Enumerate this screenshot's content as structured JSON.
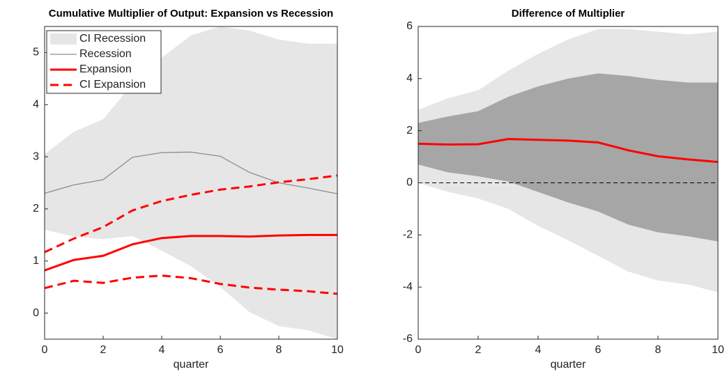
{
  "chart_data": [
    {
      "type": "line",
      "title": "Cumulative Multiplier of Output: Expansion vs Recession",
      "xlabel": "quarter",
      "x": [
        0,
        1,
        2,
        3,
        4,
        5,
        6,
        7,
        8,
        9,
        10
      ],
      "xlim": [
        0,
        10
      ],
      "xticks": [
        0,
        2,
        4,
        6,
        8,
        10
      ],
      "ylim": [
        -0.5,
        5.5
      ],
      "yticks": [
        0,
        1,
        2,
        3,
        4,
        5
      ],
      "legend": "upper left",
      "series": [
        {
          "name": "CI Recession",
          "kind": "band",
          "color": "#e6e6e6",
          "upper": [
            3.05,
            3.48,
            3.72,
            4.4,
            4.9,
            5.33,
            5.5,
            5.42,
            5.25,
            5.17,
            5.17
          ],
          "lower": [
            1.6,
            1.47,
            1.42,
            1.48,
            1.2,
            0.9,
            0.5,
            0.02,
            -0.25,
            -0.33,
            -0.5
          ]
        },
        {
          "name": "Recession",
          "kind": "line",
          "color": "#8c8c8c",
          "values": [
            2.3,
            2.46,
            2.56,
            2.99,
            3.08,
            3.09,
            3.01,
            2.7,
            2.5,
            2.4,
            2.29
          ]
        },
        {
          "name": "Expansion",
          "kind": "line",
          "color": "#ff0000",
          "values": [
            0.82,
            1.02,
            1.1,
            1.32,
            1.44,
            1.48,
            1.48,
            1.47,
            1.49,
            1.5,
            1.5
          ]
        },
        {
          "name": "CI Expansion",
          "kind": "band-lines",
          "color": "#ff0000",
          "dashed": true,
          "upper": [
            1.17,
            1.43,
            1.65,
            1.97,
            2.15,
            2.27,
            2.37,
            2.43,
            2.51,
            2.57,
            2.64
          ],
          "lower": [
            0.48,
            0.62,
            0.58,
            0.68,
            0.72,
            0.67,
            0.56,
            0.49,
            0.45,
            0.42,
            0.37
          ]
        }
      ]
    },
    {
      "type": "line",
      "title": "Difference of Multiplier",
      "xlabel": "quarter",
      "x": [
        0,
        1,
        2,
        3,
        4,
        5,
        6,
        7,
        8,
        9,
        10
      ],
      "xlim": [
        0,
        10
      ],
      "xticks": [
        0,
        2,
        4,
        6,
        8,
        10
      ],
      "ylim": [
        -6,
        6
      ],
      "yticks": [
        -6,
        -4,
        -2,
        0,
        2,
        4,
        6
      ],
      "hline": 0,
      "series": [
        {
          "kind": "band",
          "color": "#e6e6e6",
          "upper": [
            2.8,
            3.25,
            3.55,
            4.3,
            4.95,
            5.5,
            5.9,
            5.9,
            5.8,
            5.7,
            5.8
          ],
          "lower": [
            0.0,
            -0.35,
            -0.6,
            -1.0,
            -1.65,
            -2.2,
            -2.8,
            -3.4,
            -3.75,
            -3.9,
            -4.2
          ]
        },
        {
          "kind": "band",
          "color": "#a6a6a6",
          "upper": [
            2.3,
            2.55,
            2.75,
            3.3,
            3.7,
            4.0,
            4.2,
            4.1,
            3.95,
            3.85,
            3.85
          ],
          "lower": [
            0.7,
            0.4,
            0.25,
            0.05,
            -0.35,
            -0.75,
            -1.1,
            -1.6,
            -1.9,
            -2.05,
            -2.25
          ]
        },
        {
          "kind": "line",
          "color": "#ff0000",
          "values": [
            1.5,
            1.47,
            1.48,
            1.68,
            1.65,
            1.62,
            1.55,
            1.25,
            1.02,
            0.9,
            0.8
          ]
        }
      ]
    }
  ]
}
